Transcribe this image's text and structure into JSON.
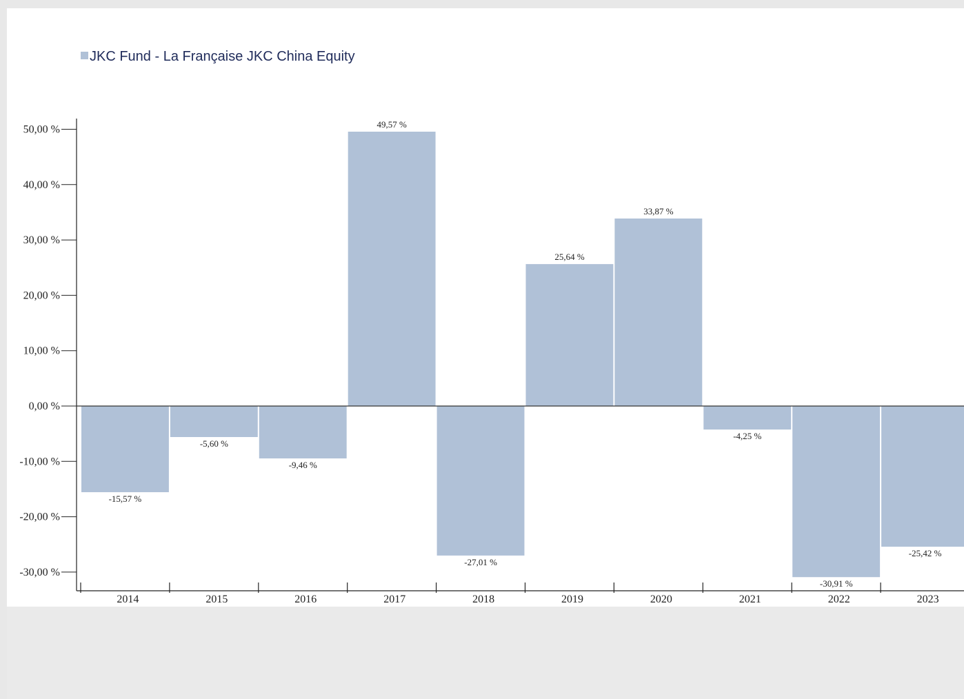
{
  "chart_data": {
    "type": "bar",
    "categories": [
      "2014",
      "2015",
      "2016",
      "2017",
      "2018",
      "2019",
      "2020",
      "2021",
      "2022",
      "2023"
    ],
    "series": [
      {
        "name": "JKC Fund - La Française JKC China Equity",
        "values": [
          -15.57,
          -5.6,
          -9.46,
          49.57,
          -27.01,
          25.64,
          33.87,
          -4.25,
          -30.91,
          -25.42
        ],
        "labels": [
          "-15,57 %",
          "-5,60 %",
          "-9,46 %",
          "49,57 %",
          "-27,01 %",
          "25,64 %",
          "33,87 %",
          "-4,25 %",
          "-30,91 %",
          "-25,42 %"
        ],
        "color": "#b0c1d7"
      }
    ],
    "yticks": [
      {
        "value": 50,
        "label": "50,00 %"
      },
      {
        "value": 40,
        "label": "40,00 %"
      },
      {
        "value": 30,
        "label": "30,00 %"
      },
      {
        "value": 20,
        "label": "20,00 %"
      },
      {
        "value": 10,
        "label": "10,00 %"
      },
      {
        "value": 0,
        "label": "0,00 %"
      },
      {
        "value": -10,
        "label": "-10,00 %"
      },
      {
        "value": -20,
        "label": "-20,00 %"
      },
      {
        "value": -30,
        "label": "-30,00 %"
      }
    ],
    "ylim": [
      -33.5,
      52
    ],
    "legend_position": "top-left",
    "legend_text_color": "#1f2b5a",
    "grid": false,
    "title": "",
    "xlabel": "",
    "ylabel": ""
  }
}
